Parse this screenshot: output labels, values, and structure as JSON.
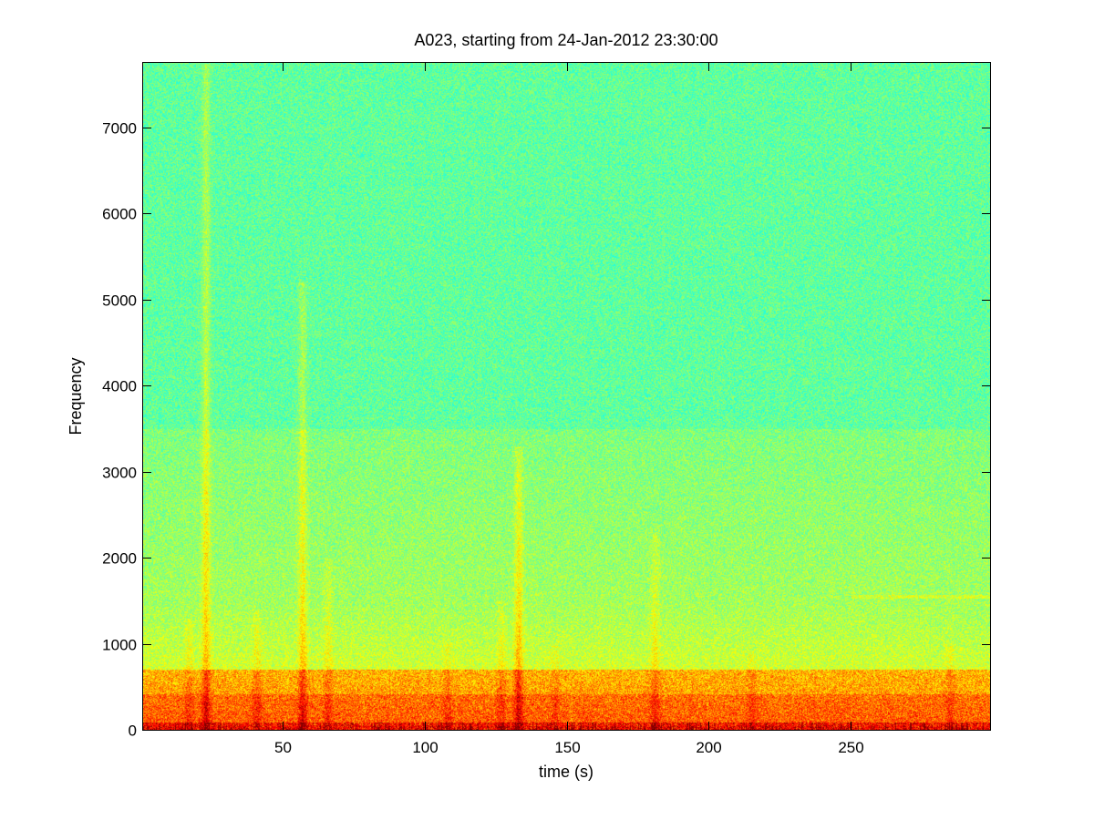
{
  "chart_data": {
    "type": "heatmap",
    "title": "A023, starting from 24-Jan-2012 23:30:00",
    "xlabel": "time (s)",
    "ylabel": "Frequency",
    "xlim": [
      1,
      299
    ],
    "ylim": [
      0,
      7750
    ],
    "x_ticks": [
      50,
      100,
      150,
      200,
      250
    ],
    "y_ticks": [
      0,
      1000,
      2000,
      3000,
      4000,
      5000,
      6000,
      7000
    ],
    "grid": false,
    "colormap": "jet",
    "colors": {
      "background_level": "#55f0a0",
      "mid_level": "#d8f44a",
      "high_level": "#ffee00",
      "peak_level": "#c81414",
      "axes": "#000000"
    },
    "features": {
      "broadband_noise_floor_hz": 0,
      "strong_low_band_hz": [
        0,
        700
      ],
      "elevated_band_hz": [
        700,
        3500
      ],
      "transient_events": [
        {
          "time_s": 23,
          "freq_max_hz": 7750,
          "strength": 0.7
        },
        {
          "time_s": 57,
          "freq_max_hz": 5200,
          "strength": 0.65
        },
        {
          "time_s": 133,
          "freq_max_hz": 3300,
          "strength": 0.75
        },
        {
          "time_s": 41,
          "freq_max_hz": 1400,
          "strength": 0.4
        },
        {
          "time_s": 17,
          "freq_max_hz": 1300,
          "strength": 0.35
        },
        {
          "time_s": 66,
          "freq_max_hz": 2000,
          "strength": 0.35
        },
        {
          "time_s": 108,
          "freq_max_hz": 1000,
          "strength": 0.35
        },
        {
          "time_s": 127,
          "freq_max_hz": 1500,
          "strength": 0.35
        },
        {
          "time_s": 146,
          "freq_max_hz": 1000,
          "strength": 0.3
        },
        {
          "time_s": 181,
          "freq_max_hz": 2300,
          "strength": 0.45
        },
        {
          "time_s": 215,
          "freq_max_hz": 900,
          "strength": 0.3
        },
        {
          "time_s": 285,
          "freq_max_hz": 1000,
          "strength": 0.3
        }
      ],
      "narrowband_lines": [
        {
          "freq_hz": 1550,
          "time_range_s": [
            250,
            299
          ],
          "strength": 0.25
        }
      ]
    }
  }
}
